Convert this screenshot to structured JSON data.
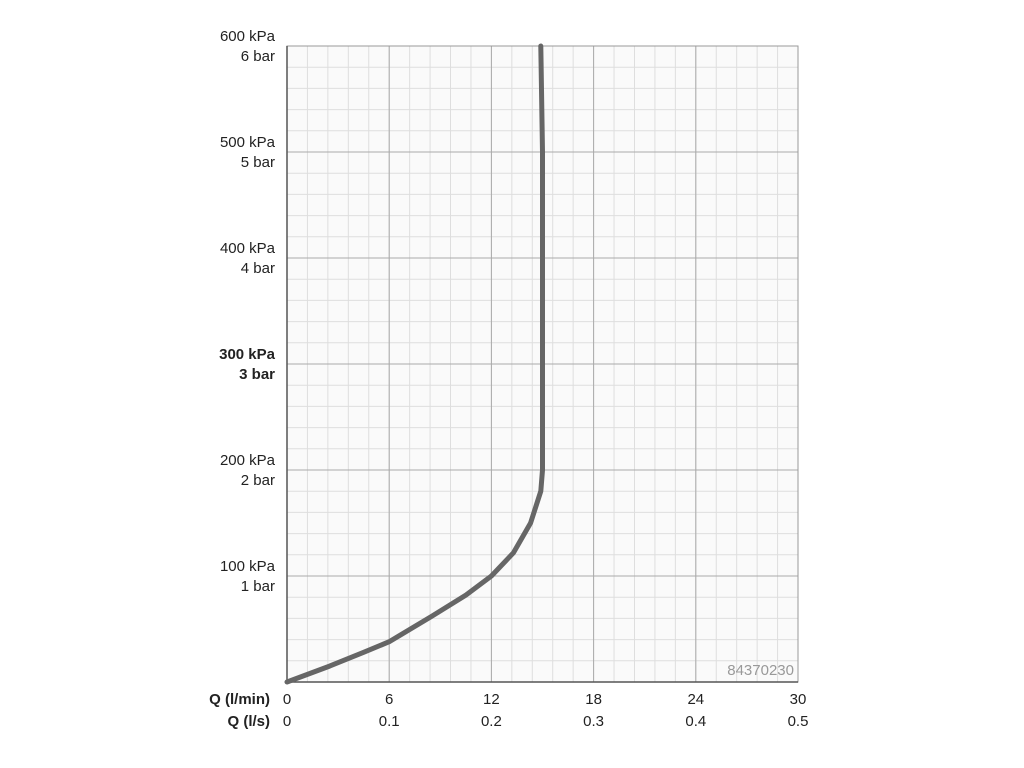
{
  "chart_data": {
    "type": "line",
    "xlabel": "Q (l/min)",
    "x2label": "Q (l/s)",
    "xlim": [
      0,
      30
    ],
    "xticks": [
      0,
      6,
      12,
      18,
      24,
      30
    ],
    "x2lim": [
      0,
      0.5
    ],
    "x2ticks": [
      0,
      0.1,
      0.2,
      0.3,
      0.4,
      0.5
    ],
    "ylim": [
      0,
      600
    ],
    "yticks": [
      {
        "value": 100,
        "label": "100 kPa"
      },
      {
        "value": 200,
        "label": "200 kPa"
      },
      {
        "value": 300,
        "label": "300 kPa"
      },
      {
        "value": 400,
        "label": "400 kPa"
      },
      {
        "value": 500,
        "label": "500 kPa"
      },
      {
        "value": 600,
        "label": "600 kPa"
      }
    ],
    "y2lim": [
      0,
      6
    ],
    "y2ticks": [
      {
        "value": 1,
        "label": "1 bar"
      },
      {
        "value": 2,
        "label": "2 bar"
      },
      {
        "value": 3,
        "label": "3 bar"
      },
      {
        "value": 4,
        "label": "4 bar"
      },
      {
        "value": 5,
        "label": "5 bar"
      },
      {
        "value": 6,
        "label": "6 bar"
      }
    ],
    "emphasized_ytick": 300,
    "emphasized_y2tick": 3,
    "grid": true,
    "x_minor_divisions": 5,
    "y_minor_divisions": 5,
    "watermark": "84370230",
    "series": [
      {
        "color": "#666666",
        "x": [
          0,
          2.5,
          4.5,
          6,
          8.5,
          10.5,
          12,
          13.3,
          14.3,
          14.9,
          15,
          15,
          15,
          14.9
        ],
        "values": [
          0,
          15,
          28,
          38,
          62,
          82,
          100,
          122,
          150,
          180,
          200,
          300,
          500,
          600
        ]
      }
    ]
  }
}
